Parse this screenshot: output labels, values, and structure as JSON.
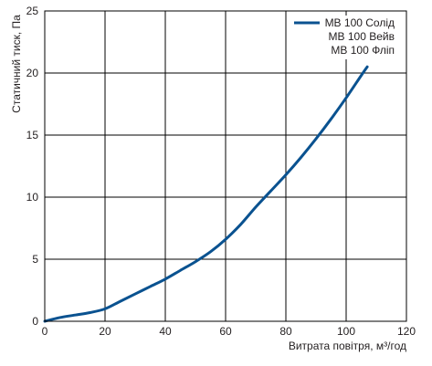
{
  "chart_data": {
    "type": "line",
    "title": "",
    "xlabel": "Витрата повітря, м³/год",
    "ylabel": "Статичний тиск, Па",
    "xlim": [
      0,
      120
    ],
    "ylim": [
      0,
      25
    ],
    "xticks": [
      "0",
      "20",
      "40",
      "60",
      "80",
      "100",
      "120"
    ],
    "yticks": [
      "0",
      "5",
      "10",
      "15",
      "20",
      "25"
    ],
    "grid": true,
    "legend_position": "top-right",
    "legend": [
      "МВ 100 Солід",
      "МВ 100 Вейв",
      "МВ 100 Фліп"
    ],
    "series": [
      {
        "name": "МВ 100 Солід",
        "color": "#0a5290",
        "x": [
          0,
          5,
          10,
          15,
          20,
          25,
          30,
          35,
          40,
          45,
          50,
          55,
          60,
          65,
          70,
          75,
          80,
          85,
          90,
          95,
          100,
          105,
          107
        ],
        "y": [
          0,
          0.3,
          0.5,
          0.7,
          1.0,
          1.6,
          2.2,
          2.8,
          3.4,
          4.1,
          4.8,
          5.6,
          6.6,
          7.8,
          9.2,
          10.5,
          11.8,
          13.2,
          14.7,
          16.3,
          18.0,
          19.8,
          20.5
        ]
      }
    ]
  }
}
